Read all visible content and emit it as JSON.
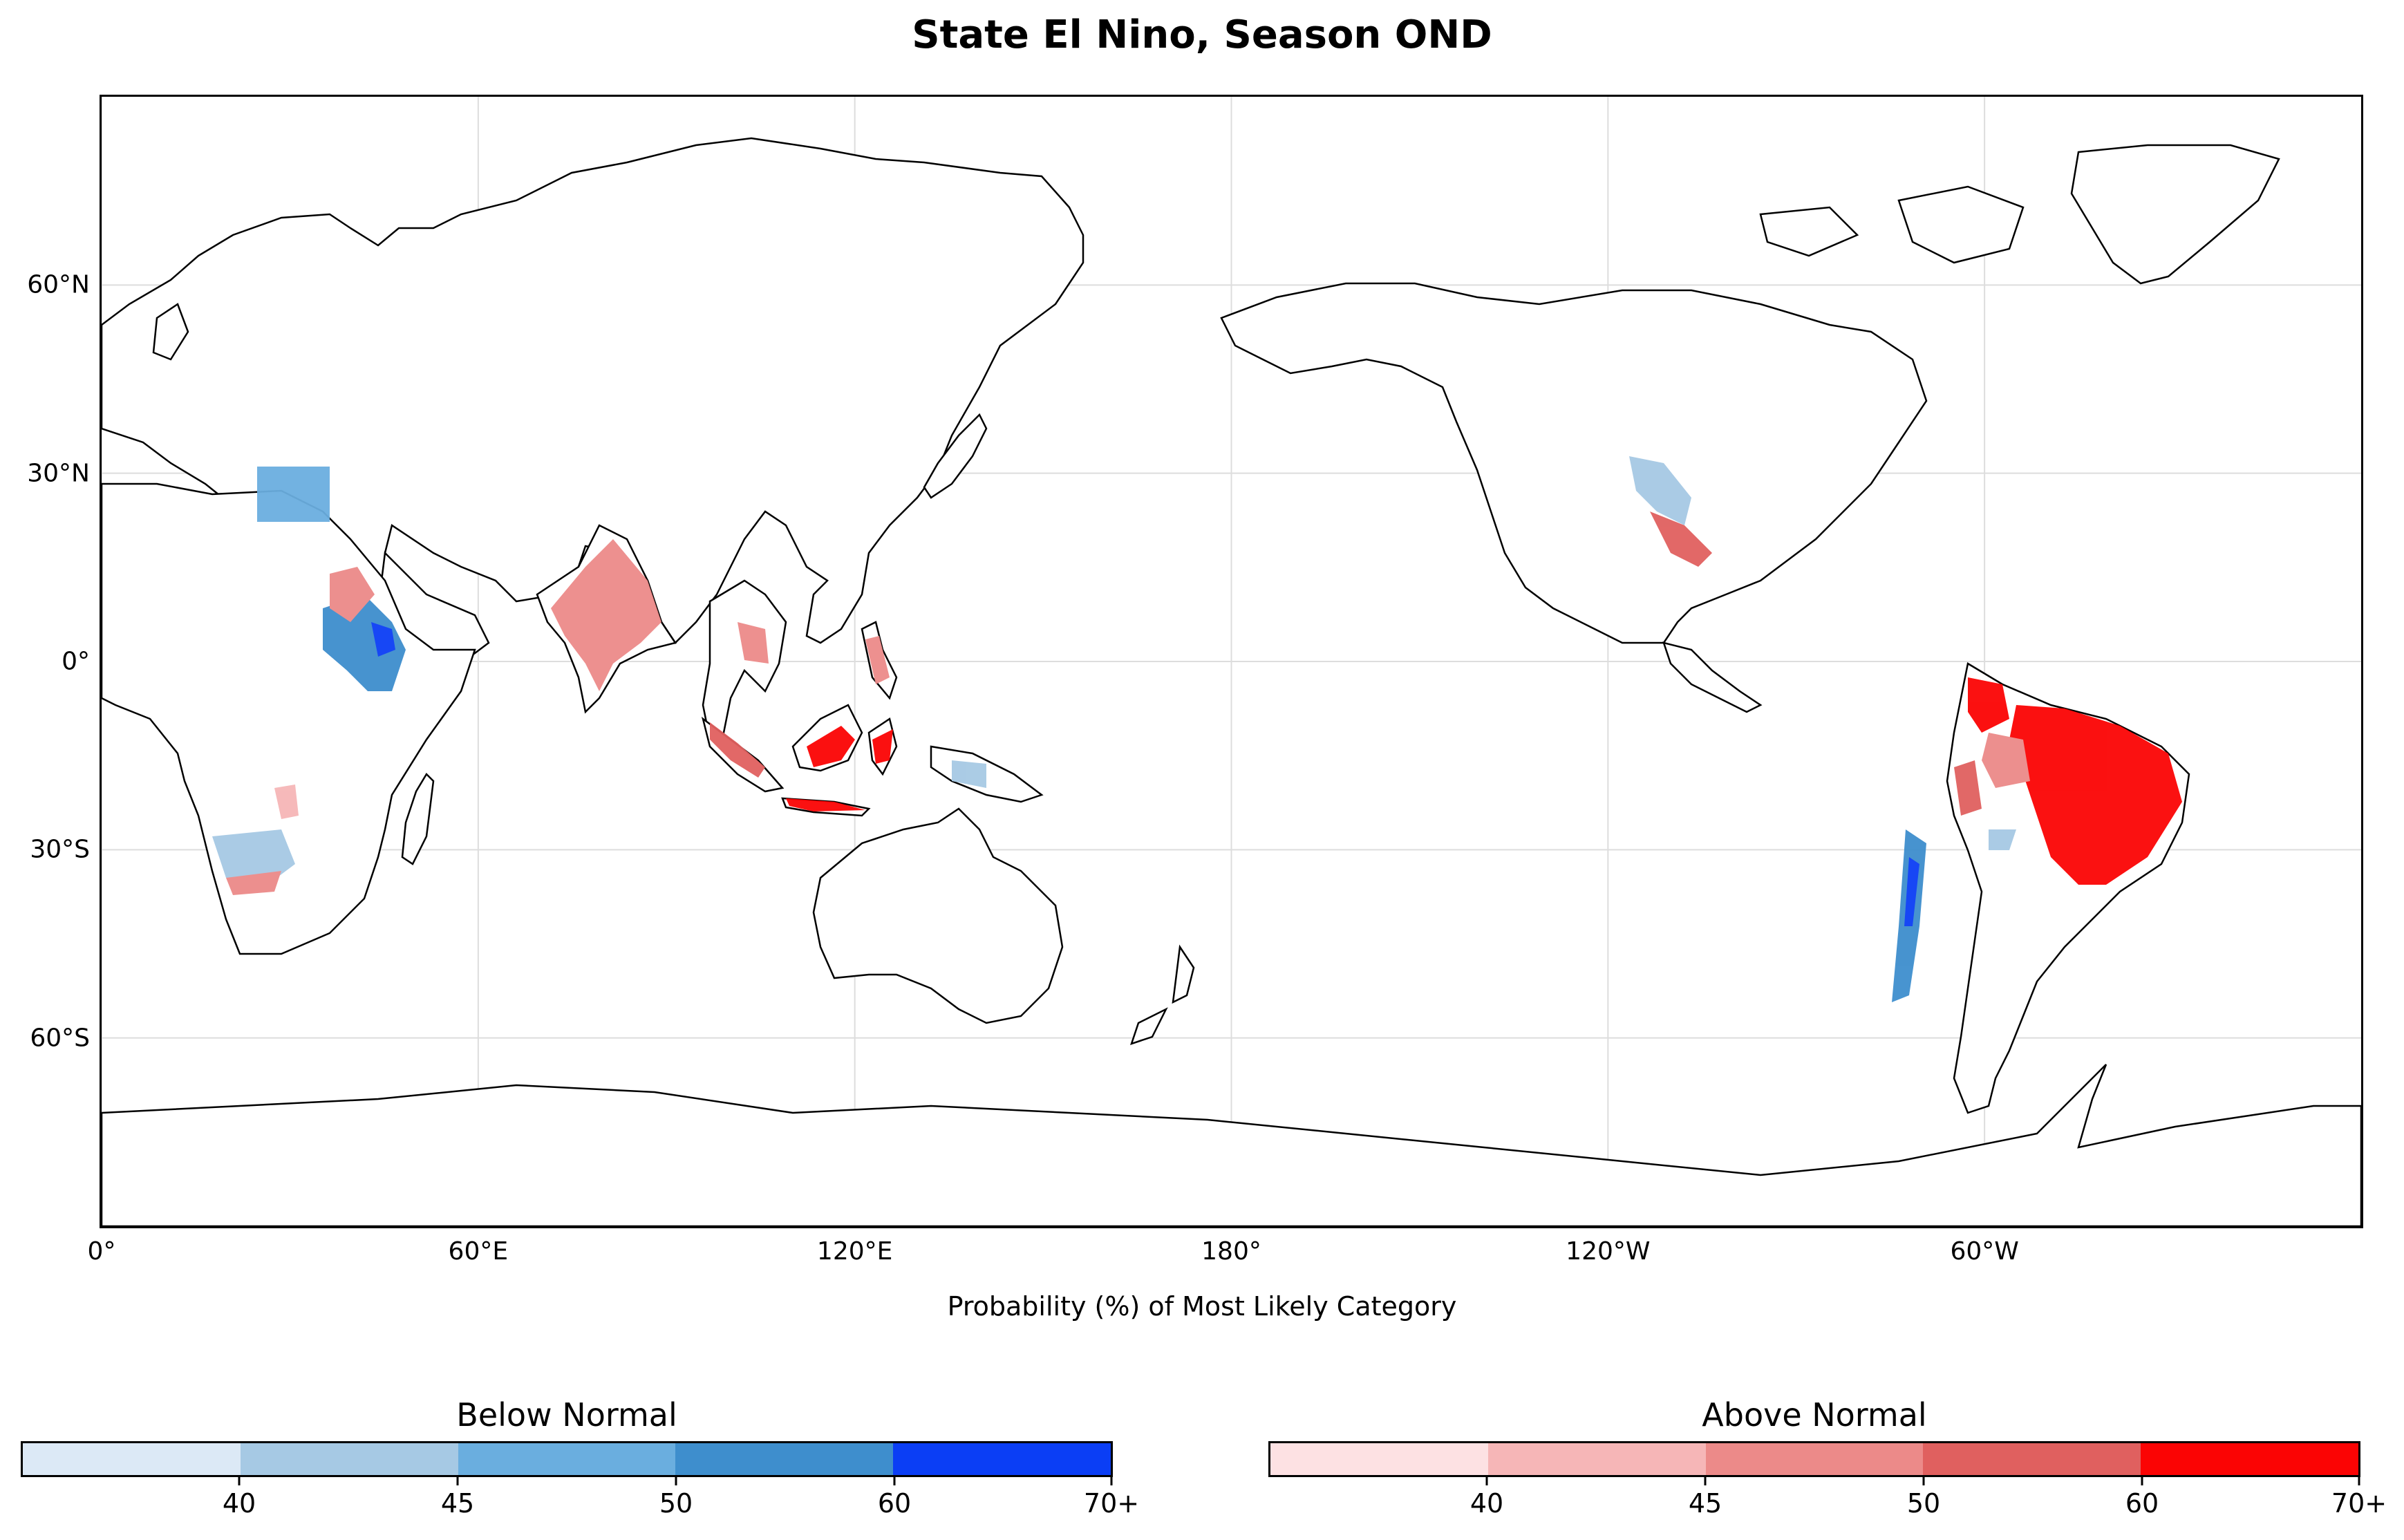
{
  "title": "State El Nino, Season OND",
  "map": {
    "y_ticks": [
      {
        "lat": 60,
        "label": "60°N"
      },
      {
        "lat": 30,
        "label": "30°N"
      },
      {
        "lat": 0,
        "label": "0°"
      },
      {
        "lat": -30,
        "label": "30°S"
      },
      {
        "lat": -60,
        "label": "60°S"
      }
    ],
    "x_ticks": [
      {
        "lon": 0,
        "label": "0°"
      },
      {
        "lon": 60,
        "label": "60°E"
      },
      {
        "lon": 120,
        "label": "120°E"
      },
      {
        "lon": 180,
        "label": "180°"
      },
      {
        "lon": 240,
        "label": "120°W"
      },
      {
        "lon": 300,
        "label": "60°W"
      }
    ],
    "x_axis_title": "Probability (%) of Most Likely Category",
    "lon_range": [
      0,
      360
    ],
    "lat_range": [
      -90,
      90
    ],
    "grid": true
  },
  "colorbars": {
    "below": {
      "title": "Below Normal",
      "colors": [
        "#dce9f6",
        "#a6c9e4",
        "#6aaedf",
        "#3e8ecd",
        "#0b3ef5"
      ],
      "tick_labels": [
        "40",
        "45",
        "50",
        "60",
        "70+"
      ]
    },
    "above": {
      "title": "Above Normal",
      "colors": [
        "#fde1e3",
        "#f6b6b7",
        "#ec8a89",
        "#e0605f",
        "#fb0404"
      ],
      "tick_labels": [
        "40",
        "45",
        "50",
        "60",
        "70+"
      ]
    }
  }
}
